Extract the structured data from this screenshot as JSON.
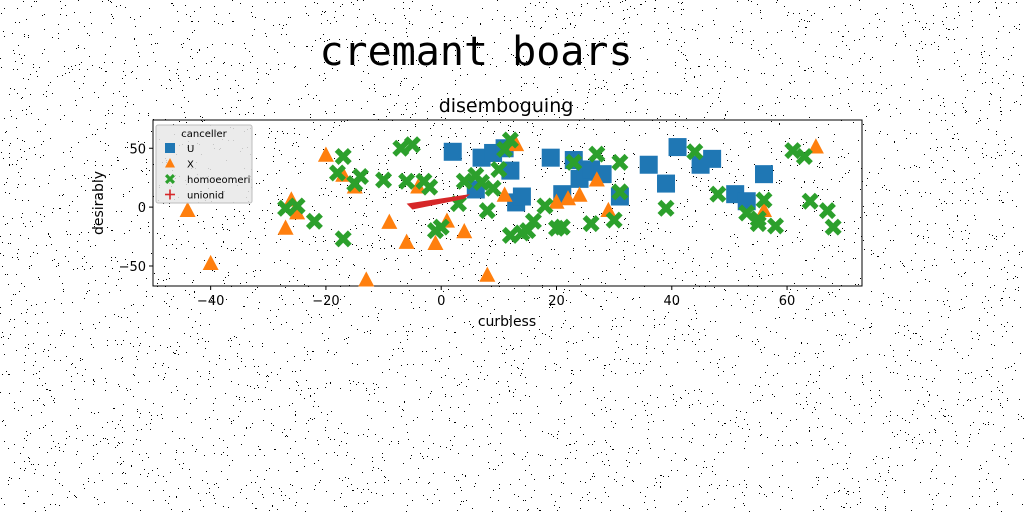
{
  "suptitle": "cremant boars",
  "chart_data": {
    "type": "scatter",
    "title": "disemboguing",
    "xlabel": "curbless",
    "ylabel": "desirably",
    "xlim": [
      -50,
      73
    ],
    "ylim": [
      -67,
      74
    ],
    "xticks": [
      -40,
      -20,
      0,
      20,
      40,
      60
    ],
    "yticks": [
      -50,
      0,
      50
    ],
    "grid": false,
    "legend": {
      "title": "canceller",
      "placement": "upper-left"
    },
    "series": [
      {
        "name": "U",
        "marker": "square",
        "color": "#1f77b4",
        "points": [
          [
            2,
            47
          ],
          [
            7,
            42
          ],
          [
            9,
            46
          ],
          [
            11,
            50
          ],
          [
            12,
            31
          ],
          [
            13,
            4
          ],
          [
            14,
            9
          ],
          [
            19,
            42
          ],
          [
            21,
            11
          ],
          [
            23,
            40
          ],
          [
            24,
            24
          ],
          [
            25,
            30
          ],
          [
            26,
            32
          ],
          [
            28,
            28
          ],
          [
            31,
            9
          ],
          [
            36,
            36
          ],
          [
            39,
            20
          ],
          [
            41,
            51
          ],
          [
            45,
            36
          ],
          [
            47,
            41
          ],
          [
            51,
            11
          ],
          [
            53,
            5
          ],
          [
            56,
            28
          ],
          [
            6,
            15
          ]
        ]
      },
      {
        "name": "X",
        "marker": "triangle",
        "color": "#ff7f0e",
        "points": [
          [
            -44,
            -3
          ],
          [
            -40,
            -48
          ],
          [
            -27,
            -18
          ],
          [
            -26,
            6
          ],
          [
            -25,
            -5
          ],
          [
            -20,
            44
          ],
          [
            -17,
            27
          ],
          [
            -15,
            17
          ],
          [
            -13,
            -62
          ],
          [
            -9,
            -13
          ],
          [
            -6,
            -30
          ],
          [
            -1,
            -31
          ],
          [
            1,
            -12
          ],
          [
            4,
            -21
          ],
          [
            8,
            -58
          ],
          [
            11,
            10
          ],
          [
            13,
            53
          ],
          [
            20,
            4
          ],
          [
            22,
            7
          ],
          [
            24,
            10
          ],
          [
            27,
            23
          ],
          [
            29,
            -3
          ],
          [
            56,
            -3
          ],
          [
            65,
            51
          ],
          [
            -4,
            17
          ]
        ]
      },
      {
        "name": "homoeomeri",
        "marker": "x",
        "color": "#2ca02c",
        "points": [
          [
            -27,
            -1
          ],
          [
            -25,
            1
          ],
          [
            -22,
            -12
          ],
          [
            -17,
            43
          ],
          [
            -14,
            26
          ],
          [
            -10,
            23
          ],
          [
            -15,
            20
          ],
          [
            -17,
            -27
          ],
          [
            -6,
            22
          ],
          [
            -7,
            50
          ],
          [
            -5,
            53
          ],
          [
            -3,
            22
          ],
          [
            -2,
            17
          ],
          [
            -1,
            -20
          ],
          [
            0,
            -17
          ],
          [
            3,
            3
          ],
          [
            4,
            22
          ],
          [
            6,
            27
          ],
          [
            7,
            21
          ],
          [
            8,
            -3
          ],
          [
            9,
            16
          ],
          [
            10,
            32
          ],
          [
            11,
            49
          ],
          [
            12,
            57
          ],
          [
            15,
            -20
          ],
          [
            16,
            -12
          ],
          [
            18,
            1
          ],
          [
            20,
            -18
          ],
          [
            21,
            -17
          ],
          [
            23,
            38
          ],
          [
            26,
            -14
          ],
          [
            27,
            45
          ],
          [
            30,
            -11
          ],
          [
            31,
            38
          ],
          [
            31,
            13
          ],
          [
            39,
            -1
          ],
          [
            44,
            47
          ],
          [
            48,
            11
          ],
          [
            53,
            -5
          ],
          [
            55,
            -10
          ],
          [
            55,
            -14
          ],
          [
            56,
            6
          ],
          [
            58,
            -16
          ],
          [
            61,
            48
          ],
          [
            63,
            43
          ],
          [
            64,
            5
          ],
          [
            67,
            -3
          ],
          [
            68,
            -17
          ],
          [
            14,
            -22
          ],
          [
            12,
            -24
          ],
          [
            -18,
            29
          ]
        ]
      },
      {
        "name": "unionid",
        "marker": "polygon",
        "color": "#d62728",
        "points": [
          [
            -5,
            -2
          ],
          [
            4,
            7
          ],
          [
            5,
            11
          ],
          [
            -6,
            3
          ]
        ]
      }
    ]
  }
}
